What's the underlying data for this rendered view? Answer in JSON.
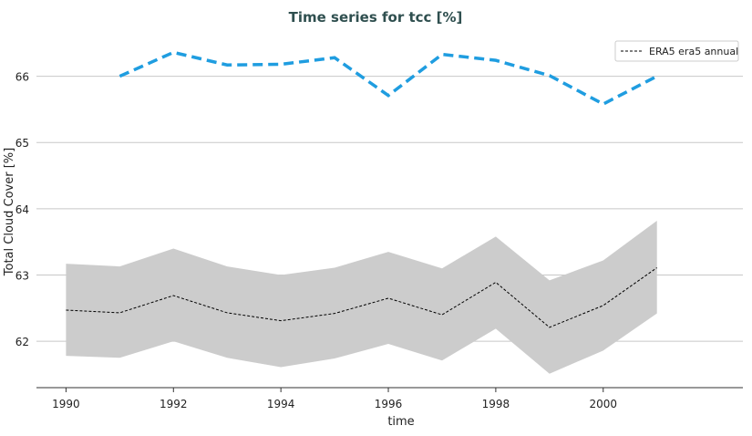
{
  "chart_data": {
    "type": "line",
    "title": "Time series for tcc [%]",
    "xlabel": "time",
    "ylabel": "Total Cloud Cover [%]",
    "xlim": [
      1989.45,
      2002.6
    ],
    "ylim": [
      61.3,
      66.6
    ],
    "xticks": [
      1990,
      1992,
      1994,
      1996,
      1998,
      2000
    ],
    "yticks": [
      62,
      63,
      64,
      65,
      66
    ],
    "grid": "horizontal",
    "legend_position": "top-right",
    "series": [
      {
        "name": "ERA5 era5 annual",
        "style": "dashed",
        "color": "#000000",
        "x": [
          1990,
          1991,
          1992,
          1993,
          1994,
          1995,
          1996,
          1997,
          1998,
          1999,
          2000,
          2001
        ],
        "y": [
          62.47,
          62.43,
          62.69,
          62.43,
          62.31,
          62.42,
          62.65,
          62.4,
          62.89,
          62.21,
          62.54,
          63.11
        ],
        "band_upper": [
          63.17,
          63.13,
          63.4,
          63.13,
          63.0,
          63.11,
          63.35,
          63.1,
          63.58,
          62.92,
          63.22,
          63.82
        ],
        "band_lower": [
          61.78,
          61.75,
          62.0,
          61.75,
          61.61,
          61.74,
          61.96,
          61.71,
          62.19,
          61.51,
          61.86,
          62.42
        ],
        "band_color": "#cccccc"
      },
      {
        "style": "dashed",
        "color": "#1f9de0",
        "x": [
          1991,
          1992,
          1993,
          1994,
          1995,
          1996,
          1997,
          1998,
          1999,
          2000,
          2001
        ],
        "y": [
          66.0,
          66.36,
          66.17,
          66.18,
          66.28,
          65.71,
          66.33,
          66.24,
          66.01,
          65.58,
          66.0
        ]
      }
    ]
  },
  "title_color": "#2f4f4f"
}
